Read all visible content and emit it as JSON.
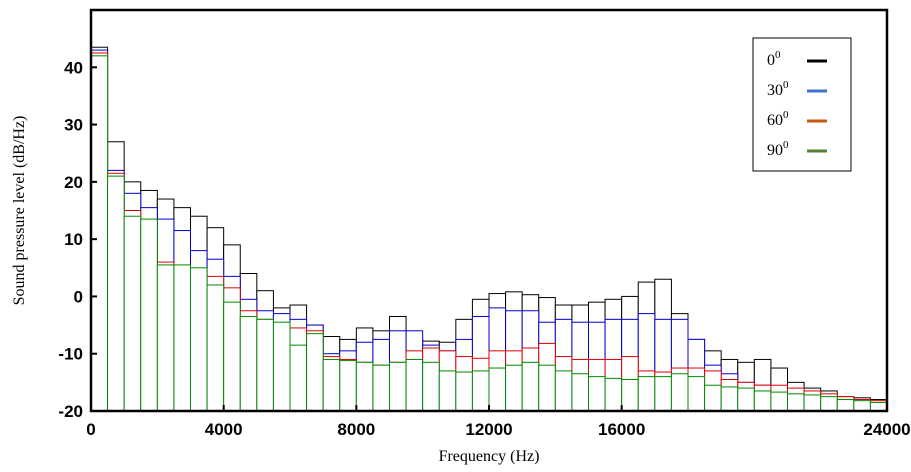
{
  "chart_data": {
    "type": "bar",
    "title": "",
    "xlabel": "Frequency (Hz)",
    "ylabel": "Sound pressure level (dB/Hz)",
    "xlim": [
      0,
      24000
    ],
    "ylim": [
      -20,
      50
    ],
    "x_ticks": [
      {
        "value": 0,
        "label": "0"
      },
      {
        "value": 4000,
        "label": "4000"
      },
      {
        "value": 8000,
        "label": "8000"
      },
      {
        "value": 12000,
        "label": "12000"
      },
      {
        "value": 16000,
        "label": "16000"
      },
      {
        "value": 24000,
        "label": "24000"
      }
    ],
    "y_ticks": [
      {
        "value": -20,
        "label": "-20"
      },
      {
        "value": -10,
        "label": "-10"
      },
      {
        "value": 0,
        "label": "0"
      },
      {
        "value": 10,
        "label": "10"
      },
      {
        "value": 20,
        "label": "20"
      },
      {
        "value": 30,
        "label": "30"
      },
      {
        "value": 40,
        "label": "40"
      }
    ],
    "bin_width": 500,
    "legend_position": "top-right",
    "grid": false,
    "series": [
      {
        "name": "0",
        "superscript": "0",
        "color": "#000000",
        "edge_color": "#000000",
        "values": [
          43.5,
          27,
          20,
          18.5,
          17,
          15.5,
          14,
          12,
          9,
          4,
          1,
          -2,
          -1.5,
          -5,
          -7,
          -7.5,
          -5.5,
          -6,
          -3.5,
          -7.5,
          -7.8,
          -8,
          -4,
          -0.5,
          0.5,
          0.8,
          0.3,
          -0.2,
          -1.5,
          -1.5,
          -1,
          -0.5,
          0,
          2.5,
          3,
          -3,
          -7.5,
          -9.5,
          -11,
          -11.5,
          -11,
          -12.5,
          -15,
          -16,
          -16.5,
          -17.5,
          -17.7,
          -18
        ]
      },
      {
        "name": "30",
        "superscript": "0",
        "color": "#4472C4",
        "edge_color": "#0000cc",
        "values": [
          43,
          22,
          18,
          15.5,
          13.5,
          11.5,
          8,
          6.5,
          3.5,
          -0.5,
          -2.5,
          -3,
          -4,
          -5,
          -10,
          -9.5,
          -8,
          -7.5,
          -6,
          -6,
          -8.5,
          -9.5,
          -7.5,
          -3.5,
          -2,
          -2.5,
          -2.5,
          -4.5,
          -4,
          -4.5,
          -4.5,
          -4,
          -4,
          -3,
          -4,
          -4,
          -7.5,
          -12,
          -13.5,
          -15,
          -15.5,
          -16,
          -16.5,
          -17,
          -17.5,
          -18,
          -18,
          -18.3
        ]
      },
      {
        "name": "60",
        "superscript": "0",
        "color": "#C55A11",
        "edge_color": "#dd0000",
        "values": [
          42.5,
          21.5,
          15,
          10,
          6,
          0.5,
          1,
          3.5,
          1.5,
          -2.5,
          -4,
          -5.2,
          -5.5,
          -6,
          -10.5,
          -11,
          -11.5,
          -12,
          -11.5,
          -9.5,
          -9,
          -9.5,
          -10.5,
          -10.8,
          -9.5,
          -9.5,
          -9,
          -8.2,
          -10.5,
          -11,
          -11,
          -11,
          -10.5,
          -13,
          -13.2,
          -12.5,
          -12.5,
          -13,
          -14.5,
          -15,
          -15.5,
          -15.5,
          -16,
          -16.5,
          -17,
          -17.5,
          -18,
          -18.2
        ]
      },
      {
        "name": "90",
        "superscript": "0",
        "color": "#548235",
        "edge_color": "#008800",
        "values": [
          42,
          21,
          14,
          13.5,
          5.5,
          5.5,
          5,
          2,
          -1,
          -3.5,
          -4,
          -4.5,
          -8.5,
          -6.5,
          -11,
          -11.2,
          -11.5,
          -12,
          -11.5,
          -11,
          -11.5,
          -13,
          -13.2,
          -13,
          -12.5,
          -12,
          -11.5,
          -12,
          -13,
          -13.5,
          -14,
          -14.3,
          -14.5,
          -14,
          -14,
          -13.5,
          -14,
          -15.5,
          -15.8,
          -16,
          -16.5,
          -16.7,
          -17,
          -17.2,
          -17.5,
          -18,
          -18.2,
          -18.5
        ]
      }
    ]
  }
}
